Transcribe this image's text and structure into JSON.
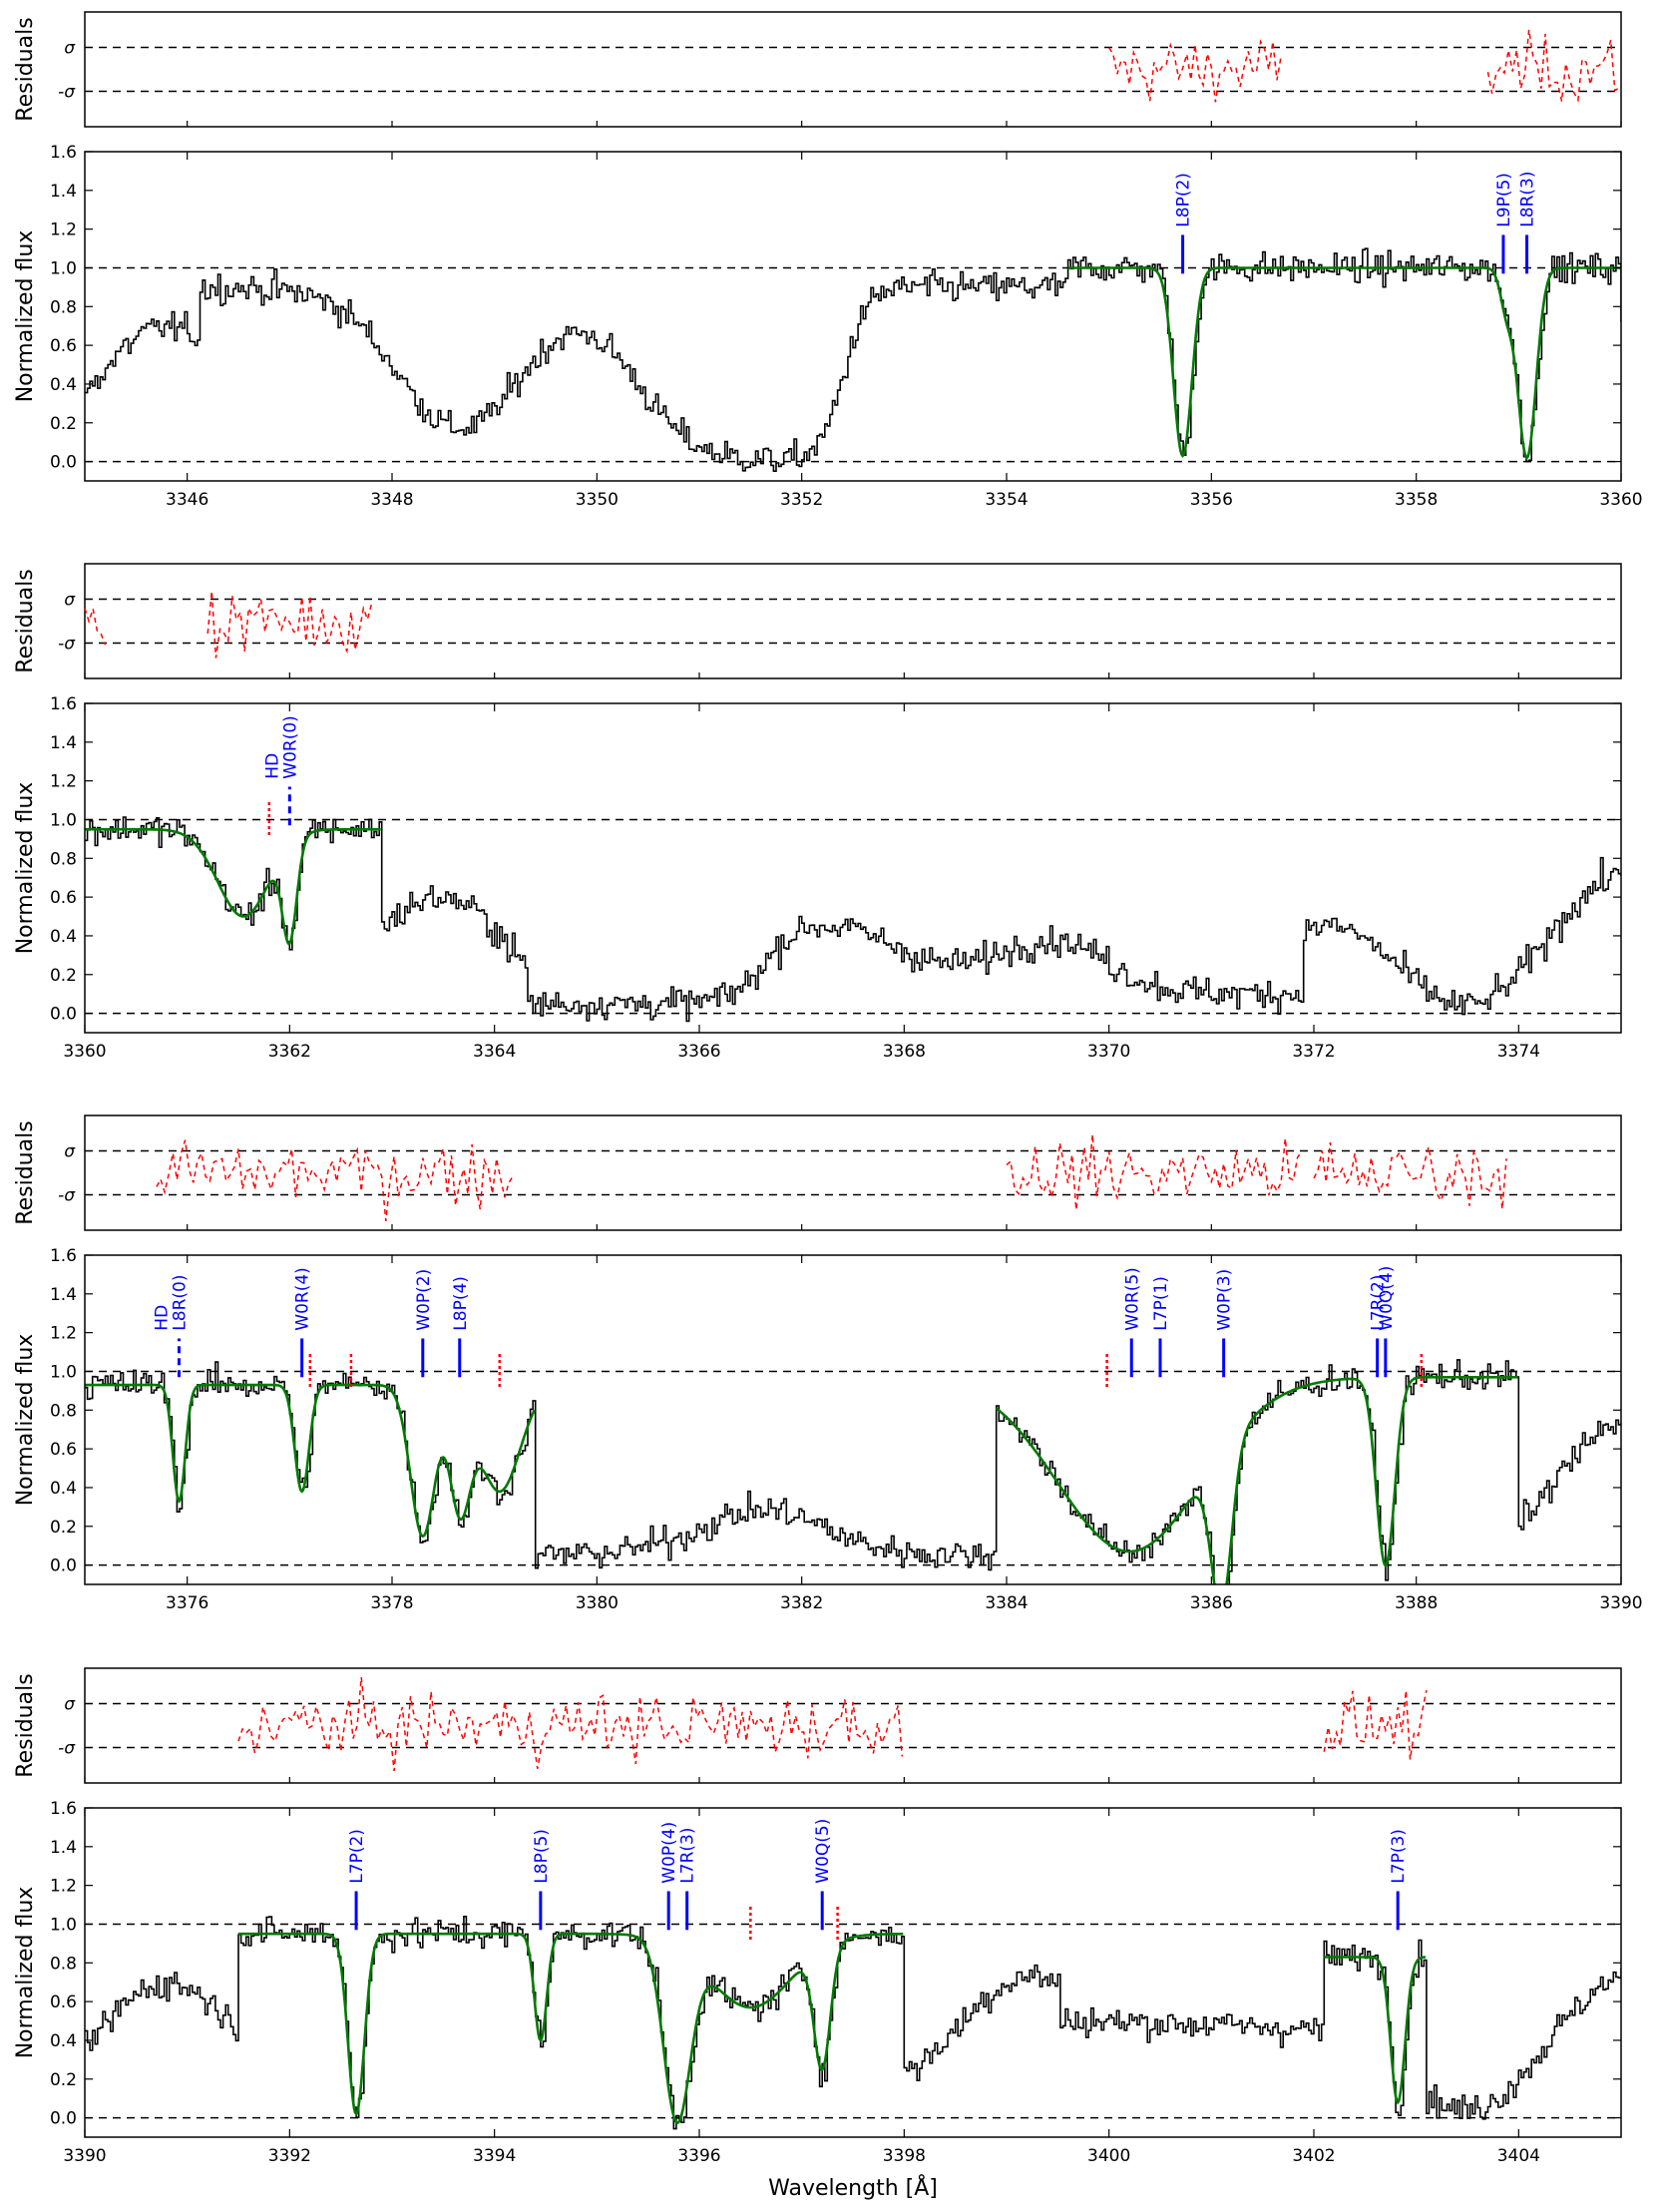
{
  "figure": {
    "xlabel": "Wavelength [Å]",
    "ylabel_flux": "Normalized flux",
    "ylabel_residuals": "Residuals",
    "residual_tick_labels": [
      "σ",
      "-σ"
    ]
  },
  "colors": {
    "data": "#000000",
    "model": "#007a00",
    "residuals": "#ff0000",
    "line_markers": "#0000ff",
    "blend_markers": "#ff0000",
    "reference_lines": "#000000"
  },
  "chart_data": [
    {
      "type": "line",
      "xlim": [
        3345,
        3360
      ],
      "ylim": [
        -0.1,
        1.6
      ],
      "xticks": [
        3346,
        3348,
        3350,
        3352,
        3354,
        3356,
        3358,
        3360
      ],
      "yticks": [
        0.0,
        0.2,
        0.4,
        0.6,
        0.8,
        1.0,
        1.2,
        1.4,
        1.6
      ],
      "reference_levels": [
        0.0,
        1.0
      ],
      "residual_ranges": [
        [
          3355.0,
          3356.7
        ],
        [
          3358.7,
          3360.0
        ]
      ],
      "features": [
        {
          "center": 3347.5,
          "kind": "peak",
          "level": 0.9
        },
        {
          "center": 3348.6,
          "kind": "trough",
          "level": 0.0
        },
        {
          "center": 3349.8,
          "kind": "peak",
          "level": 0.8
        },
        {
          "center": 3351.0,
          "kind": "trough",
          "level": 0.0
        },
        {
          "center": 3353.8,
          "kind": "peak",
          "level": 0.9
        }
      ],
      "model": {
        "range": [
          3354.6,
          3360.0
        ],
        "continuum": 1.0,
        "absorptions": [
          {
            "center": 3355.72,
            "depth": 0.97,
            "width": 0.09
          },
          {
            "center": 3358.88,
            "depth": 0.2,
            "width": 0.06
          },
          {
            "center": 3359.08,
            "depth": 0.98,
            "width": 0.09
          }
        ]
      },
      "line_markers": [
        {
          "label": "L8P(2)",
          "wavelength": 3355.72,
          "style": "solid"
        },
        {
          "label": "L9P(5)",
          "wavelength": 3358.85,
          "style": "solid"
        },
        {
          "label": "L8R(3)",
          "wavelength": 3359.08,
          "style": "solid"
        }
      ],
      "blend_markers": []
    },
    {
      "type": "line",
      "xlim": [
        3360,
        3375
      ],
      "ylim": [
        -0.1,
        1.6
      ],
      "xticks": [
        3360,
        3362,
        3364,
        3366,
        3368,
        3370,
        3372,
        3374
      ],
      "yticks": [
        0.0,
        0.2,
        0.4,
        0.6,
        0.8,
        1.0,
        1.2,
        1.4,
        1.6
      ],
      "reference_levels": [
        0.0,
        1.0
      ],
      "residual_ranges": [
        [
          3360.0,
          3360.2
        ],
        [
          3361.2,
          3362.8
        ]
      ],
      "features": [
        {
          "center": 3365.7,
          "kind": "trough",
          "level": 0.05
        },
        {
          "center": 3367.6,
          "kind": "peak",
          "level": 0.5
        },
        {
          "center": 3368.5,
          "kind": "trough",
          "level": 0.1
        },
        {
          "center": 3369.3,
          "kind": "peak",
          "level": 0.5
        },
        {
          "center": 3370.5,
          "kind": "trough",
          "level": 0.1
        }
      ],
      "model": {
        "range": [
          3360.0,
          3362.9
        ],
        "continuum": 0.95,
        "absorptions": [
          {
            "center": 3361.55,
            "depth": 0.45,
            "width": 0.25
          },
          {
            "center": 3362.0,
            "depth": 0.5,
            "width": 0.07
          }
        ]
      },
      "line_markers": [
        {
          "label": "HD W0R(0)",
          "wavelength": 3362.0,
          "style": "dashed"
        }
      ],
      "blend_markers": [
        3361.8
      ]
    },
    {
      "type": "line",
      "xlim": [
        3375,
        3390
      ],
      "ylim": [
        -0.1,
        1.6
      ],
      "xticks": [
        3376,
        3378,
        3380,
        3382,
        3384,
        3386,
        3388,
        3390
      ],
      "yticks": [
        0.0,
        0.2,
        0.4,
        0.6,
        0.8,
        1.0,
        1.2,
        1.4,
        1.6
      ],
      "reference_levels": [
        0.0,
        1.0
      ],
      "residual_ranges": [
        [
          3375.7,
          3379.2
        ],
        [
          3384.0,
          3386.9
        ],
        [
          3387.0,
          3388.9
        ]
      ],
      "features": [
        {
          "center": 3380.7,
          "kind": "trough",
          "level": 0.05
        },
        {
          "center": 3381.6,
          "kind": "peak",
          "level": 0.4
        },
        {
          "center": 3382.6,
          "kind": "trough",
          "level": 0.05
        }
      ],
      "model": {
        "range": [
          3375.0,
          3389.0
        ],
        "segments": [
          {
            "range": [
              3375.0,
              3379.4
            ],
            "continuum": 0.93,
            "absorptions": [
              {
                "center": 3375.92,
                "depth": 0.6,
                "width": 0.06
              },
              {
                "center": 3377.12,
                "depth": 0.55,
                "width": 0.07
              },
              {
                "center": 3378.3,
                "depth": 0.78,
                "width": 0.12
              },
              {
                "center": 3378.66,
                "depth": 0.6,
                "width": 0.1
              },
              {
                "center": 3379.05,
                "depth": 0.55,
                "width": 0.2
              }
            ]
          },
          {
            "range": [
              3383.9,
              3389.0
            ],
            "continuum": 0.97,
            "absorptions": [
              {
                "center": 3385.2,
                "depth": 0.9,
                "width": 0.7
              },
              {
                "center": 3386.1,
                "depth": 0.8,
                "width": 0.1
              },
              {
                "center": 3387.7,
                "depth": 0.97,
                "width": 0.09
              }
            ]
          }
        ]
      },
      "line_markers": [
        {
          "label": "HD L8R(0)",
          "wavelength": 3375.92,
          "style": "dashed"
        },
        {
          "label": "W0R(4)",
          "wavelength": 3377.12,
          "style": "solid"
        },
        {
          "label": "W0P(2)",
          "wavelength": 3378.3,
          "style": "solid"
        },
        {
          "label": "L8P(4)",
          "wavelength": 3378.66,
          "style": "solid"
        },
        {
          "label": "W0R(5)",
          "wavelength": 3385.22,
          "style": "solid"
        },
        {
          "label": "L7P(1)",
          "wavelength": 3385.5,
          "style": "solid"
        },
        {
          "label": "W0P(3)",
          "wavelength": 3386.12,
          "style": "solid"
        },
        {
          "label": "L7R(2)",
          "wavelength": 3387.62,
          "style": "solid"
        },
        {
          "label": "W0Q(4)",
          "wavelength": 3387.7,
          "style": "solid"
        }
      ],
      "blend_markers": [
        3377.2,
        3377.6,
        3379.05,
        3384.98,
        3388.05
      ]
    },
    {
      "type": "line",
      "xlim": [
        3390,
        3405
      ],
      "ylim": [
        -0.1,
        1.6
      ],
      "xticks": [
        3390,
        3392,
        3394,
        3396,
        3398,
        3400,
        3402,
        3404
      ],
      "yticks": [
        0.0,
        0.2,
        0.4,
        0.6,
        0.8,
        1.0,
        1.2,
        1.4,
        1.6
      ],
      "reference_levels": [
        0.0,
        1.0
      ],
      "residual_ranges": [
        [
          3391.5,
          3398.0
        ],
        [
          3402.1,
          3403.1
        ]
      ],
      "features": [
        {
          "center": 3400.9,
          "kind": "trough",
          "level": 0.5
        },
        {
          "center": 3401.5,
          "kind": "trough",
          "level": 0.45
        }
      ],
      "model": {
        "range": [
          3391.5,
          3403.1
        ],
        "segments": [
          {
            "range": [
              3391.5,
              3398.0
            ],
            "continuum": 0.95,
            "absorptions": [
              {
                "center": 3392.65,
                "depth": 0.93,
                "width": 0.08
              },
              {
                "center": 3394.45,
                "depth": 0.55,
                "width": 0.06
              },
              {
                "center": 3395.78,
                "depth": 0.9,
                "width": 0.13
              },
              {
                "center": 3396.5,
                "depth": 0.38,
                "width": 0.4
              },
              {
                "center": 3397.2,
                "depth": 0.62,
                "width": 0.08
              }
            ]
          },
          {
            "range": [
              3402.1,
              3403.1
            ],
            "continuum": 0.83,
            "absorptions": [
              {
                "center": 3402.82,
                "depth": 0.75,
                "width": 0.07
              }
            ]
          }
        ]
      },
      "line_markers": [
        {
          "label": "L7P(2)",
          "wavelength": 3392.65,
          "style": "solid"
        },
        {
          "label": "L8P(5)",
          "wavelength": 3394.45,
          "style": "solid"
        },
        {
          "label": "W0P(4)",
          "wavelength": 3395.7,
          "style": "solid"
        },
        {
          "label": "L7R(3)",
          "wavelength": 3395.88,
          "style": "solid"
        },
        {
          "label": "W0Q(5)",
          "wavelength": 3397.2,
          "style": "solid"
        },
        {
          "label": "L7P(3)",
          "wavelength": 3402.82,
          "style": "solid"
        }
      ],
      "blend_markers": [
        3396.5,
        3397.35
      ]
    }
  ]
}
